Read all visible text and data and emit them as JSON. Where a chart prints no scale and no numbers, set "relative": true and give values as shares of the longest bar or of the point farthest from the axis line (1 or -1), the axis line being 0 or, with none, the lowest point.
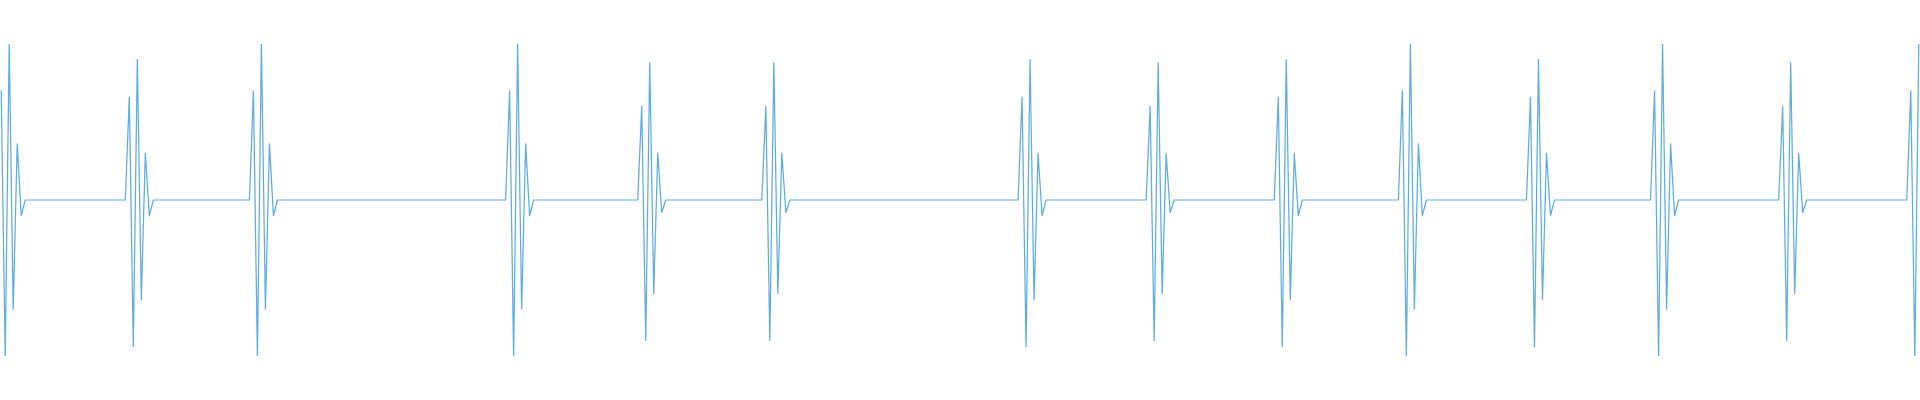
{
  "chart_data": {
    "type": "line",
    "relative": true,
    "color": "#5dade2",
    "categories": [
      null,
      null,
      null,
      null,
      null,
      null,
      null,
      null,
      null,
      null,
      null,
      null,
      null,
      null,
      null,
      null,
      null,
      null,
      null,
      null,
      null,
      null,
      null,
      null,
      null,
      null,
      null,
      null,
      null,
      null,
      null,
      null,
      null,
      null,
      null,
      null,
      null,
      null,
      null,
      null,
      null,
      null,
      null,
      null,
      null,
      null,
      null,
      null,
      null,
      null,
      null,
      null,
      null,
      null,
      null,
      null,
      null,
      null,
      null,
      null,
      null,
      null,
      null,
      null,
      null,
      null,
      null,
      null,
      null,
      null,
      null,
      null,
      null,
      null,
      null,
      null,
      null,
      null,
      null,
      null,
      null,
      null,
      null,
      null,
      null,
      null,
      null,
      null,
      null,
      null,
      null,
      null,
      null,
      null,
      null,
      null,
      null,
      null,
      null,
      null,
      null,
      null,
      null,
      null,
      null,
      null,
      null,
      null,
      null,
      null,
      null,
      null,
      null,
      null,
      null,
      null,
      null,
      null,
      null,
      null,
      null,
      null,
      null,
      null,
      null,
      null,
      null,
      null,
      null,
      null,
      null,
      null,
      null,
      null,
      null,
      null,
      null,
      null,
      null,
      null,
      null,
      null,
      null,
      null,
      null,
      null,
      null,
      null,
      null,
      null,
      null,
      null,
      null,
      null,
      null,
      null,
      null,
      null,
      null,
      null,
      null,
      null,
      null,
      null,
      null,
      null,
      null,
      null,
      null,
      null,
      null,
      null,
      null,
      null,
      null,
      null,
      null,
      null,
      null,
      null,
      null,
      null,
      null,
      null,
      null,
      null,
      null,
      null,
      null,
      null,
      null,
      null,
      null,
      null,
      null,
      null,
      null,
      null,
      null,
      null,
      null,
      null,
      null,
      null,
      null,
      null,
      null,
      null,
      null,
      null,
      null,
      null,
      null,
      null,
      null,
      null,
      null,
      null,
      null,
      null,
      null,
      null,
      null,
      null,
      null,
      null,
      null,
      null,
      null,
      null,
      null,
      null,
      null,
      null,
      null,
      null,
      null,
      null,
      null,
      null,
      null,
      null,
      null,
      null,
      null,
      null,
      null,
      null,
      null,
      null,
      null,
      null,
      null,
      null,
      null,
      null,
      null,
      null,
      null,
      null,
      null,
      null,
      null,
      null,
      null,
      null,
      null,
      null,
      null,
      null,
      null,
      null,
      null,
      null,
      null,
      null,
      null,
      null,
      null,
      null,
      null,
      null,
      null,
      null,
      null,
      null,
      null,
      null,
      null,
      null,
      null,
      null,
      null,
      null,
      null,
      null,
      null,
      null,
      null,
      null,
      null,
      null,
      null,
      null,
      null,
      null,
      null,
      null,
      null,
      null,
      null,
      null,
      null,
      null,
      null,
      null,
      null,
      null,
      null,
      null,
      null,
      null,
      null,
      null,
      null,
      null,
      null,
      null,
      null,
      null,
      null,
      null,
      null,
      null,
      null,
      null,
      null,
      null,
      null,
      null,
      null,
      null,
      null,
      null,
      null,
      null,
      null,
      null,
      null,
      null,
      null,
      null,
      null,
      null,
      null,
      null,
      null,
      null,
      null,
      null,
      null,
      null,
      null,
      null,
      null,
      null,
      null,
      null,
      null,
      null,
      null,
      null,
      null,
      null,
      null,
      null,
      null,
      null,
      null,
      null,
      null,
      null,
      null,
      null,
      null,
      null,
      null,
      null,
      null,
      null,
      null,
      null,
      null,
      null,
      null,
      null,
      null,
      null,
      null,
      null,
      null,
      null,
      null,
      null,
      null,
      null,
      null,
      null,
      null,
      null,
      null,
      null,
      null,
      null,
      null,
      null,
      null,
      null,
      null,
      null,
      null,
      null,
      null,
      null,
      null,
      null,
      null,
      null,
      null,
      null,
      null,
      null,
      null,
      null,
      null,
      null,
      null,
      null,
      null,
      null,
      null,
      null,
      null,
      null,
      null,
      null,
      null,
      null,
      null,
      null,
      null,
      null,
      null,
      null,
      null,
      null,
      null,
      null,
      null,
      null,
      null,
      null,
      null,
      null,
      null,
      null,
      null,
      null,
      null,
      null,
      null,
      null,
      null,
      null,
      null,
      null,
      null,
      null,
      null,
      null
    ],
    "values": [
      0.85,
      0,
      1,
      0.15,
      0.68,
      0.45,
      0.5,
      0.5,
      0.5,
      0.5,
      0.5,
      0.5,
      0.5,
      0.5,
      0.5,
      0.5,
      0.5,
      0.5,
      0.5,
      0.5,
      0.5,
      0.5,
      0.5,
      0.5,
      0.5,
      0.5,
      0.5,
      0.5,
      0.5,
      0.5,
      0.5,
      0.5,
      0.83,
      0.03,
      0.95,
      0.18,
      0.65,
      0.45,
      0.5,
      0.5,
      0.5,
      0.5,
      0.5,
      0.5,
      0.5,
      0.5,
      0.5,
      0.5,
      0.5,
      0.5,
      0.5,
      0.5,
      0.5,
      0.5,
      0.5,
      0.5,
      0.5,
      0.5,
      0.5,
      0.5,
      0.5,
      0.5,
      0.5,
      0.85,
      0,
      1,
      0.15,
      0.68,
      0.45,
      0.5,
      0.5,
      0.5,
      0.5,
      0.5,
      0.5,
      0.5,
      0.5,
      0.5,
      0.5,
      0.5,
      0.5,
      0.5,
      0.5,
      0.5,
      0.5,
      0.5,
      0.5,
      0.5,
      0.5,
      0.5,
      0.5,
      0.5,
      0.5,
      0.5,
      0.5,
      0.5,
      0.5,
      0.5,
      0.5,
      0.5,
      0.5,
      0.5,
      0.5,
      0.5,
      0.5,
      0.5,
      0.5,
      0.5,
      0.5,
      0.5,
      0.5,
      0.5,
      0.5,
      0.5,
      0.5,
      0.5,
      0.5,
      0.5,
      0.5,
      0.5,
      0.5,
      0.5,
      0.5,
      0.5,
      0.5,
      0.5,
      0.5,
      0.85,
      0,
      1,
      0.15,
      0.68,
      0.45,
      0.5,
      0.5,
      0.5,
      0.5,
      0.5,
      0.5,
      0.5,
      0.5,
      0.5,
      0.5,
      0.5,
      0.5,
      0.5,
      0.5,
      0.5,
      0.5,
      0.5,
      0.5,
      0.5,
      0.5,
      0.5,
      0.5,
      0.5,
      0.5,
      0.5,
      0.5,
      0.5,
      0.8,
      0.05,
      0.94,
      0.2,
      0.65,
      0.46,
      0.5,
      0.5,
      0.5,
      0.5,
      0.5,
      0.5,
      0.5,
      0.5,
      0.5,
      0.5,
      0.5,
      0.5,
      0.5,
      0.5,
      0.5,
      0.5,
      0.5,
      0.5,
      0.5,
      0.5,
      0.5,
      0.5,
      0.5,
      0.5,
      0.5,
      0.8,
      0.05,
      0.94,
      0.2,
      0.65,
      0.46,
      0.5,
      0.5,
      0.5,
      0.5,
      0.5,
      0.5,
      0.5,
      0.5,
      0.5,
      0.5,
      0.5,
      0.5,
      0.5,
      0.5,
      0.5,
      0.5,
      0.5,
      0.5,
      0.5,
      0.5,
      0.5,
      0.5,
      0.5,
      0.5,
      0.5,
      0.5,
      0.5,
      0.5,
      0.5,
      0.5,
      0.5,
      0.5,
      0.5,
      0.5,
      0.5,
      0.5,
      0.5,
      0.5,
      0.5,
      0.5,
      0.5,
      0.5,
      0.5,
      0.5,
      0.5,
      0.5,
      0.5,
      0.5,
      0.5,
      0.5,
      0.5,
      0.5,
      0.5,
      0.5,
      0.5,
      0.5,
      0.5,
      0.5,
      0.83,
      0.03,
      0.95,
      0.18,
      0.65,
      0.45,
      0.5,
      0.5,
      0.5,
      0.5,
      0.5,
      0.5,
      0.5,
      0.5,
      0.5,
      0.5,
      0.5,
      0.5,
      0.5,
      0.5,
      0.5,
      0.5,
      0.5,
      0.5,
      0.5,
      0.5,
      0.5,
      0.5,
      0.5,
      0.5,
      0.5,
      0.5,
      0.8,
      0.05,
      0.94,
      0.2,
      0.65,
      0.46,
      0.5,
      0.5,
      0.5,
      0.5,
      0.5,
      0.5,
      0.5,
      0.5,
      0.5,
      0.5,
      0.5,
      0.5,
      0.5,
      0.5,
      0.5,
      0.5,
      0.5,
      0.5,
      0.5,
      0.5,
      0.5,
      0.5,
      0.5,
      0.5,
      0.5,
      0.5,
      0.83,
      0.03,
      0.95,
      0.18,
      0.65,
      0.45,
      0.5,
      0.5,
      0.5,
      0.5,
      0.5,
      0.5,
      0.5,
      0.5,
      0.5,
      0.5,
      0.5,
      0.5,
      0.5,
      0.5,
      0.5,
      0.5,
      0.5,
      0.5,
      0.5,
      0.5,
      0.5,
      0.5,
      0.5,
      0.5,
      0.5,
      0.85,
      0,
      1,
      0.15,
      0.68,
      0.45,
      0.5,
      0.5,
      0.5,
      0.5,
      0.5,
      0.5,
      0.5,
      0.5,
      0.5,
      0.5,
      0.5,
      0.5,
      0.5,
      0.5,
      0.5,
      0.5,
      0.5,
      0.5,
      0.5,
      0.5,
      0.5,
      0.5,
      0.5,
      0.5,
      0.5,
      0.5,
      0.83,
      0.03,
      0.95,
      0.18,
      0.65,
      0.45,
      0.5,
      0.5,
      0.5,
      0.5,
      0.5,
      0.5,
      0.5,
      0.5,
      0.5,
      0.5,
      0.5,
      0.5,
      0.5,
      0.5,
      0.5,
      0.5,
      0.5,
      0.5,
      0.5,
      0.5,
      0.5,
      0.5,
      0.5,
      0.5,
      0.5,
      0.85,
      0,
      1,
      0.15,
      0.68,
      0.45,
      0.5,
      0.5,
      0.5,
      0.5,
      0.5,
      0.5,
      0.5,
      0.5,
      0.5,
      0.5,
      0.5,
      0.5,
      0.5,
      0.5,
      0.5,
      0.5,
      0.5,
      0.5,
      0.5,
      0.5,
      0.5,
      0.5,
      0.5,
      0.5,
      0.5,
      0.5,
      0.8,
      0.05,
      0.94,
      0.2,
      0.65,
      0.46,
      0.5,
      0.5,
      0.5,
      0.5,
      0.5,
      0.5,
      0.5,
      0.5,
      0.5,
      0.5,
      0.5,
      0.5,
      0.5,
      0.5,
      0.5,
      0.5,
      0.5,
      0.5,
      0.5,
      0.5,
      0.5,
      0.5,
      0.5,
      0.5,
      0.5,
      0.5,
      0.85,
      0,
      1
    ]
  }
}
